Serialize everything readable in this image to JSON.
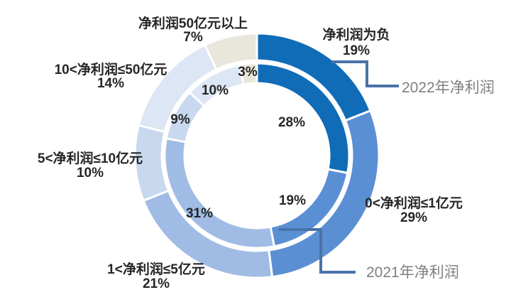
{
  "chart_data": {
    "type": "pie",
    "subtype": "double-ring-donut",
    "title": "",
    "categories": [
      "净利润为负",
      "0<净利润≤1亿元",
      "1<净利润≤5亿元",
      "5<净利润≤10亿元",
      "10<净利润≤50亿元",
      "净利润50亿元以上"
    ],
    "series": [
      {
        "name": "2022年净利润",
        "ring": "outer",
        "values": [
          19,
          29,
          21,
          10,
          14,
          7
        ]
      },
      {
        "name": "2021年净利润",
        "ring": "inner",
        "values": [
          28,
          19,
          31,
          9,
          10,
          3
        ]
      }
    ],
    "value_format": "percent",
    "start_angle_deg": 0,
    "direction": "clockwise",
    "legend_position": "callouts",
    "grid": false,
    "colors": [
      "#106CB7",
      "#5B8FD4",
      "#A0BCE4",
      "#C7D8EF",
      "#DCE6F4",
      "#E9E6DB"
    ],
    "background_color": "#FFFFFF",
    "label_color": "#262626",
    "series_label_color": "#7F7F7F",
    "callout_line_color": "#4A72A8",
    "segment_border_color": "#FFFFFF"
  }
}
